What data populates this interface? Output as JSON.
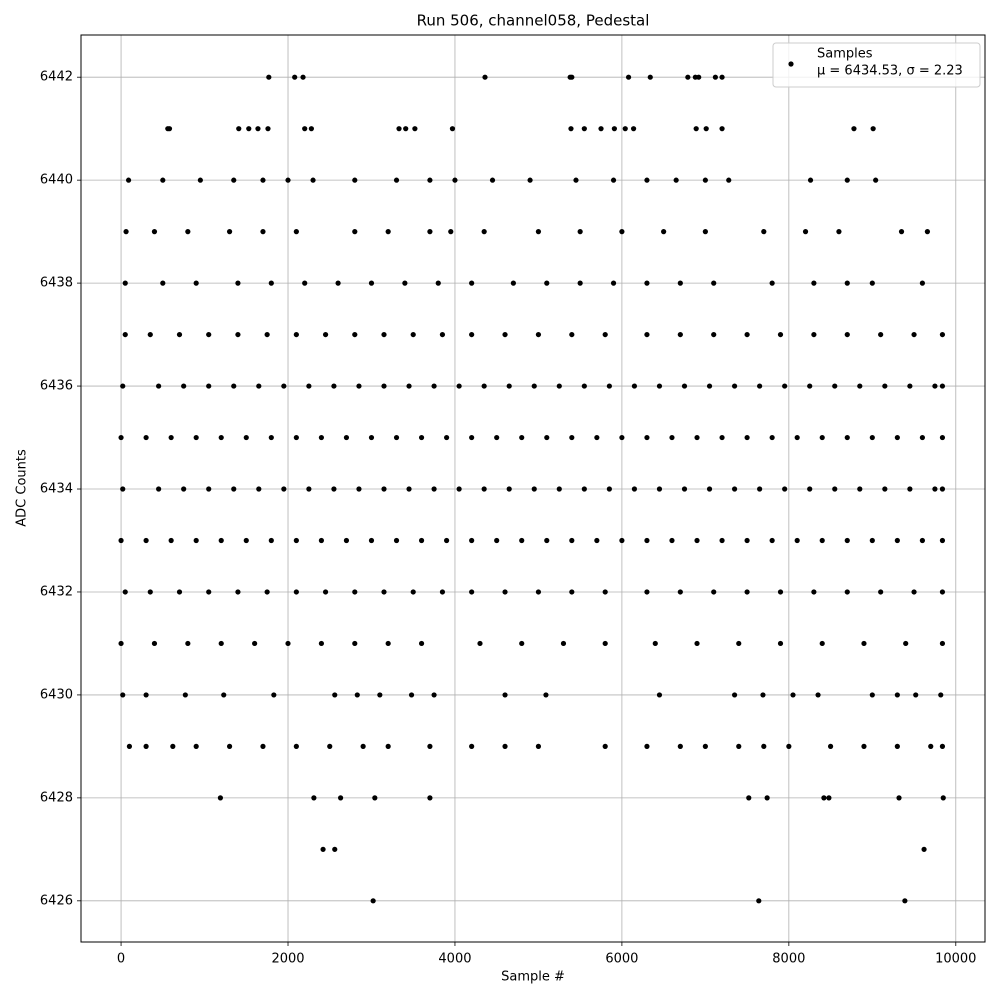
{
  "chart_data": {
    "type": "scatter",
    "title": "Run 506, channel058, Pedestal",
    "xlabel": "Sample #",
    "ylabel": "ADC Counts",
    "xlim": [
      -480,
      10350
    ],
    "ylim": [
      6425.2,
      6442.82
    ],
    "xticks": [
      0,
      2000,
      4000,
      6000,
      8000,
      10000
    ],
    "yticks": [
      6426,
      6428,
      6430,
      6432,
      6434,
      6436,
      6438,
      6440,
      6442
    ],
    "grid": true,
    "legend": "upper right",
    "legend_note": "μ = 6434.53, σ = 2.23",
    "series": [
      {
        "name": "Samples",
        "color": "#000000",
        "x": [
          3020,
          7640,
          9390,
          2420,
          2560,
          9620,
          1190,
          2310,
          2630,
          3040,
          3700,
          7520,
          7740,
          8420,
          8480,
          9320,
          9850,
          100,
          300,
          620,
          900,
          1300,
          1700,
          2100,
          2500,
          2900,
          3200,
          3700,
          4200,
          4600,
          5000,
          5800,
          6300,
          6700,
          7000,
          7400,
          7700,
          8000,
          8500,
          8900,
          9300,
          9700,
          9840,
          20,
          300,
          770,
          1230,
          1830,
          2560,
          2830,
          3100,
          3480,
          3750,
          4600,
          5090,
          6450,
          7350,
          7690,
          8050,
          8350,
          9000,
          9300,
          9520,
          9820,
          0,
          400,
          800,
          1200,
          1600,
          2000,
          2400,
          2800,
          3200,
          3600,
          4300,
          4800,
          5300,
          5800,
          6400,
          6900,
          7400,
          7900,
          8400,
          8900,
          9400,
          9840,
          50,
          350,
          700,
          1050,
          1400,
          1750,
          2100,
          2450,
          2800,
          3150,
          3500,
          3850,
          4200,
          4600,
          5000,
          5400,
          5800,
          6300,
          6700,
          7100,
          7500,
          7900,
          8300,
          8700,
          9100,
          9500,
          9840,
          0,
          300,
          600,
          900,
          1200,
          1500,
          1800,
          2100,
          2400,
          2700,
          3000,
          3300,
          3600,
          3900,
          4200,
          4500,
          4800,
          5100,
          5400,
          5700,
          6000,
          6300,
          6600,
          6900,
          7200,
          7500,
          7800,
          8100,
          8400,
          8700,
          9000,
          9300,
          9600,
          9840,
          20,
          450,
          750,
          1050,
          1350,
          1650,
          1950,
          2250,
          2550,
          2850,
          3150,
          3450,
          3750,
          4050,
          4350,
          4650,
          4950,
          5250,
          5550,
          5850,
          6150,
          6450,
          6750,
          7050,
          7350,
          7650,
          7950,
          8250,
          8550,
          8850,
          9150,
          9450,
          9750,
          9840,
          0,
          300,
          600,
          900,
          1200,
          1500,
          1800,
          2100,
          2400,
          2700,
          3000,
          3300,
          3600,
          3900,
          4200,
          4500,
          4800,
          5100,
          5400,
          5700,
          6000,
          6300,
          6600,
          6900,
          7200,
          7500,
          7800,
          8100,
          8400,
          8700,
          9000,
          9300,
          9600,
          9840,
          20,
          450,
          750,
          1050,
          1350,
          1650,
          1950,
          2250,
          2550,
          2850,
          3150,
          3450,
          3750,
          4050,
          4350,
          4650,
          4950,
          5250,
          5550,
          5850,
          6150,
          6450,
          6750,
          7050,
          7350,
          7650,
          7950,
          8250,
          8550,
          8850,
          9150,
          9450,
          9750,
          9840,
          50,
          350,
          700,
          1050,
          1400,
          1750,
          2100,
          2450,
          2800,
          3150,
          3500,
          3850,
          4200,
          4600,
          5000,
          5400,
          5800,
          6300,
          6700,
          7100,
          7500,
          7900,
          8300,
          8700,
          9100,
          9500,
          9840,
          50,
          500,
          900,
          1400,
          1800,
          2200,
          2600,
          3000,
          3400,
          3800,
          4200,
          4700,
          5100,
          5500,
          5900,
          6300,
          6700,
          7100,
          7800,
          8300,
          8700,
          9000,
          9600,
          60,
          400,
          800,
          1300,
          1700,
          2100,
          2800,
          3200,
          3700,
          3950,
          4350,
          5000,
          5500,
          6000,
          6500,
          7000,
          7700,
          8200,
          8600,
          9350,
          9660,
          90,
          500,
          950,
          1350,
          1700,
          2000,
          2300,
          2800,
          3300,
          3700,
          4000,
          4450,
          4900,
          5450,
          5900,
          6300,
          6650,
          7000,
          7280,
          8260,
          8700,
          9040,
          560,
          580,
          1410,
          1530,
          1640,
          1760,
          2200,
          2280,
          3330,
          3410,
          3520,
          3970,
          5390,
          5550,
          5750,
          5910,
          6040,
          6140,
          6890,
          7010,
          7200,
          8780,
          9010,
          1770,
          2080,
          2180,
          4360,
          5380,
          5400,
          6080,
          6340,
          6790,
          6880,
          6920,
          7120,
          7200
        ],
        "values": [
          6426,
          6426,
          6426,
          6427,
          6427,
          6427,
          6428,
          6428,
          6428,
          6428,
          6428,
          6428,
          6428,
          6428,
          6428,
          6428,
          6428,
          6429,
          6429,
          6429,
          6429,
          6429,
          6429,
          6429,
          6429,
          6429,
          6429,
          6429,
          6429,
          6429,
          6429,
          6429,
          6429,
          6429,
          6429,
          6429,
          6429,
          6429,
          6429,
          6429,
          6429,
          6429,
          6429,
          6430,
          6430,
          6430,
          6430,
          6430,
          6430,
          6430,
          6430,
          6430,
          6430,
          6430,
          6430,
          6430,
          6430,
          6430,
          6430,
          6430,
          6430,
          6430,
          6430,
          6430,
          6431,
          6431,
          6431,
          6431,
          6431,
          6431,
          6431,
          6431,
          6431,
          6431,
          6431,
          6431,
          6431,
          6431,
          6431,
          6431,
          6431,
          6431,
          6431,
          6431,
          6431,
          6431,
          6432,
          6432,
          6432,
          6432,
          6432,
          6432,
          6432,
          6432,
          6432,
          6432,
          6432,
          6432,
          6432,
          6432,
          6432,
          6432,
          6432,
          6432,
          6432,
          6432,
          6432,
          6432,
          6432,
          6432,
          6432,
          6432,
          6432,
          6433,
          6433,
          6433,
          6433,
          6433,
          6433,
          6433,
          6433,
          6433,
          6433,
          6433,
          6433,
          6433,
          6433,
          6433,
          6433,
          6433,
          6433,
          6433,
          6433,
          6433,
          6433,
          6433,
          6433,
          6433,
          6433,
          6433,
          6433,
          6433,
          6433,
          6433,
          6433,
          6433,
          6433,
          6434,
          6434,
          6434,
          6434,
          6434,
          6434,
          6434,
          6434,
          6434,
          6434,
          6434,
          6434,
          6434,
          6434,
          6434,
          6434,
          6434,
          6434,
          6434,
          6434,
          6434,
          6434,
          6434,
          6434,
          6434,
          6434,
          6434,
          6434,
          6434,
          6434,
          6434,
          6434,
          6434,
          6434,
          6435,
          6435,
          6435,
          6435,
          6435,
          6435,
          6435,
          6435,
          6435,
          6435,
          6435,
          6435,
          6435,
          6435,
          6435,
          6435,
          6435,
          6435,
          6435,
          6435,
          6435,
          6435,
          6435,
          6435,
          6435,
          6435,
          6435,
          6435,
          6435,
          6435,
          6435,
          6435,
          6435,
          6435,
          6436,
          6436,
          6436,
          6436,
          6436,
          6436,
          6436,
          6436,
          6436,
          6436,
          6436,
          6436,
          6436,
          6436,
          6436,
          6436,
          6436,
          6436,
          6436,
          6436,
          6436,
          6436,
          6436,
          6436,
          6436,
          6436,
          6436,
          6436,
          6436,
          6436,
          6436,
          6436,
          6436,
          6436,
          6437,
          6437,
          6437,
          6437,
          6437,
          6437,
          6437,
          6437,
          6437,
          6437,
          6437,
          6437,
          6437,
          6437,
          6437,
          6437,
          6437,
          6437,
          6437,
          6437,
          6437,
          6437,
          6437,
          6437,
          6437,
          6437,
          6437,
          6438,
          6438,
          6438,
          6438,
          6438,
          6438,
          6438,
          6438,
          6438,
          6438,
          6438,
          6438,
          6438,
          6438,
          6438,
          6438,
          6438,
          6438,
          6438,
          6438,
          6438,
          6438,
          6438,
          6439,
          6439,
          6439,
          6439,
          6439,
          6439,
          6439,
          6439,
          6439,
          6439,
          6439,
          6439,
          6439,
          6439,
          6439,
          6439,
          6439,
          6439,
          6439,
          6439,
          6439,
          6440,
          6440,
          6440,
          6440,
          6440,
          6440,
          6440,
          6440,
          6440,
          6440,
          6440,
          6440,
          6440,
          6440,
          6440,
          6440,
          6440,
          6440,
          6440,
          6440,
          6440,
          6440,
          6441,
          6441,
          6441,
          6441,
          6441,
          6441,
          6441,
          6441,
          6441,
          6441,
          6441,
          6441,
          6441,
          6441,
          6441,
          6441,
          6441,
          6441,
          6441,
          6441,
          6441,
          6441,
          6441,
          6442,
          6442,
          6442,
          6442,
          6442,
          6442,
          6442,
          6442,
          6442,
          6442,
          6442,
          6442,
          6442
        ]
      }
    ]
  }
}
